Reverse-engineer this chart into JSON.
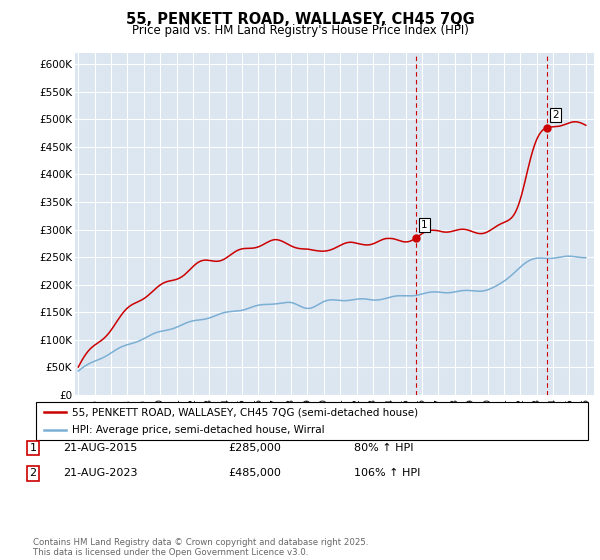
{
  "title": "55, PENKETT ROAD, WALLASEY, CH45 7QG",
  "subtitle": "Price paid vs. HM Land Registry's House Price Index (HPI)",
  "ylim": [
    0,
    620000
  ],
  "xlim_start": 1994.8,
  "xlim_end": 2026.5,
  "background_color": "#dce6f1",
  "grid_color": "#ffffff",
  "sale1_date": 2015.64,
  "sale1_price": 285000,
  "sale2_date": 2023.64,
  "sale2_price": 485000,
  "legend_line1": "55, PENKETT ROAD, WALLASEY, CH45 7QG (semi-detached house)",
  "legend_line2": "HPI: Average price, semi-detached house, Wirral",
  "table_row1": [
    "1",
    "21-AUG-2015",
    "£285,000",
    "80% ↑ HPI"
  ],
  "table_row2": [
    "2",
    "21-AUG-2023",
    "£485,000",
    "106% ↑ HPI"
  ],
  "footer": "Contains HM Land Registry data © Crown copyright and database right 2025.\nThis data is licensed under the Open Government Licence v3.0.",
  "line_color_red": "#cc0000",
  "line_color_blue": "#7bafd4",
  "vline_color": "#cc0000",
  "ytick_vals": [
    0,
    50000,
    100000,
    150000,
    200000,
    250000,
    300000,
    350000,
    400000,
    450000,
    500000,
    550000,
    600000
  ],
  "ytick_labels": [
    "£0",
    "£50K",
    "£100K",
    "£150K",
    "£200K",
    "£250K",
    "£300K",
    "£350K",
    "£400K",
    "£450K",
    "£500K",
    "£550K",
    "£600K"
  ]
}
